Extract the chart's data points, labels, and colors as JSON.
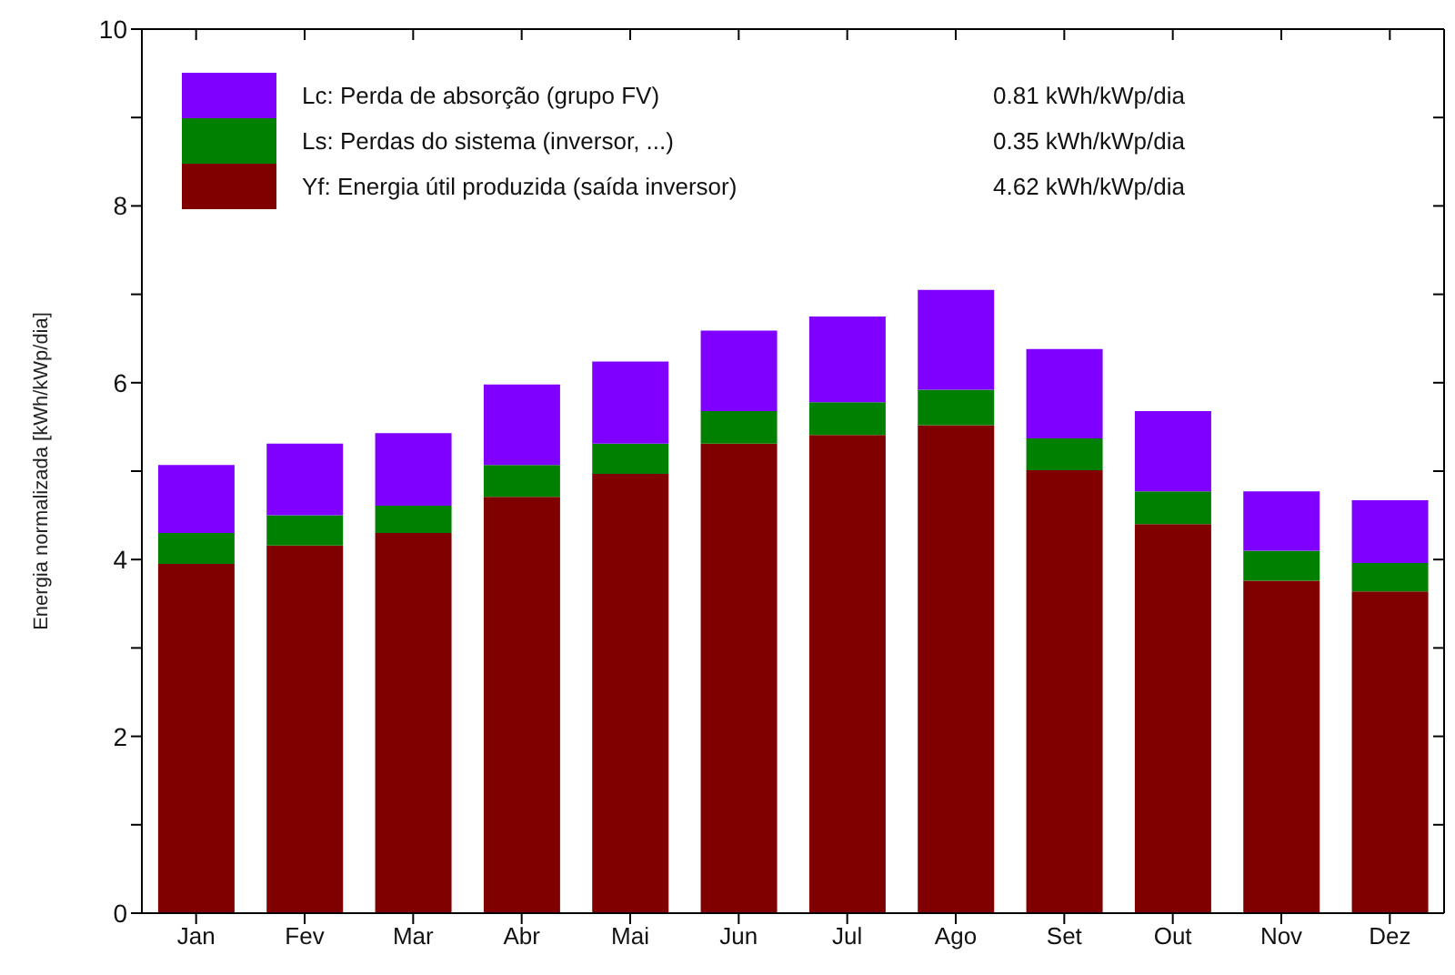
{
  "chart_data": {
    "type": "bar",
    "stacked": true,
    "ylabel": "Energia normalizada [kWh/kWp/dia]",
    "categories": [
      "Jan",
      "Fev",
      "Mar",
      "Abr",
      "Mai",
      "Jun",
      "Jul",
      "Ago",
      "Set",
      "Out",
      "Nov",
      "Dez"
    ],
    "series": [
      {
        "name": "Yf: Energia útil produzida  (saída inversor)",
        "color": "#800000",
        "values": [
          3.95,
          4.16,
          4.3,
          4.71,
          4.97,
          5.31,
          5.41,
          5.52,
          5.01,
          4.4,
          3.76,
          3.64
        ]
      },
      {
        "name": "Ls: Perdas do sistema  (inversor, ...)",
        "color": "#008000",
        "values": [
          0.35,
          0.34,
          0.31,
          0.36,
          0.34,
          0.37,
          0.37,
          0.4,
          0.36,
          0.37,
          0.34,
          0.32
        ]
      },
      {
        "name": "Lc: Perda de absorção (grupo FV)",
        "color": "#8000ff",
        "values": [
          0.77,
          0.81,
          0.82,
          0.91,
          0.93,
          0.91,
          0.97,
          1.13,
          1.01,
          0.91,
          0.67,
          0.71
        ]
      }
    ],
    "annotations": [
      "4.62 kWh/kWp/dia",
      "0.35 kWh/kWp/dia",
      "0.81 kWh/kWp/dia"
    ],
    "ylim": [
      0,
      10
    ],
    "yticks": [
      0,
      {
        "value": 1,
        "label": null
      },
      2,
      {
        "value": 3,
        "label": null
      },
      4,
      {
        "value": 5,
        "label": null
      },
      6,
      {
        "value": 7,
        "label": null
      },
      8,
      {
        "value": 9,
        "label": null
      },
      10
    ],
    "legend": "top left",
    "grid": false
  }
}
